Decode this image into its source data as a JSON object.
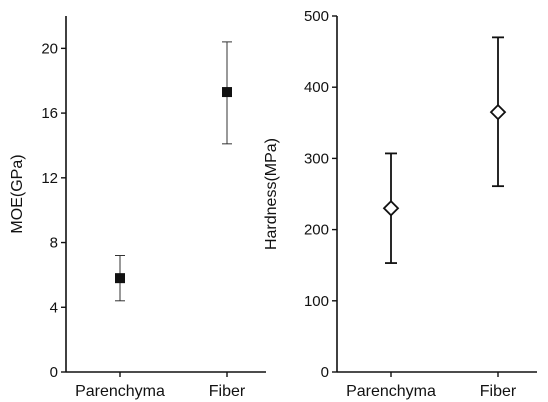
{
  "chart_data": [
    {
      "type": "scatter",
      "ylabel": "MOE(GPa)",
      "xlabel": "",
      "categories": [
        "Parenchyma",
        "Fiber"
      ],
      "ylim": [
        0,
        22
      ],
      "yticks": [
        0,
        4,
        8,
        12,
        16,
        20
      ],
      "marker": "filled-square",
      "series": [
        {
          "values": [
            5.8,
            17.3
          ],
          "err_low": [
            4.4,
            14.1
          ],
          "err_high": [
            7.2,
            20.4
          ]
        }
      ]
    },
    {
      "type": "scatter",
      "ylabel": "Hardness(MPa)",
      "xlabel": "",
      "categories": [
        "Parenchyma",
        "Fiber"
      ],
      "ylim": [
        0,
        500
      ],
      "yticks": [
        0,
        100,
        200,
        300,
        400,
        500
      ],
      "marker": "open-diamond",
      "series": [
        {
          "values": [
            230,
            365
          ],
          "err_low": [
            153,
            261
          ],
          "err_high": [
            307,
            470
          ]
        }
      ]
    }
  ]
}
